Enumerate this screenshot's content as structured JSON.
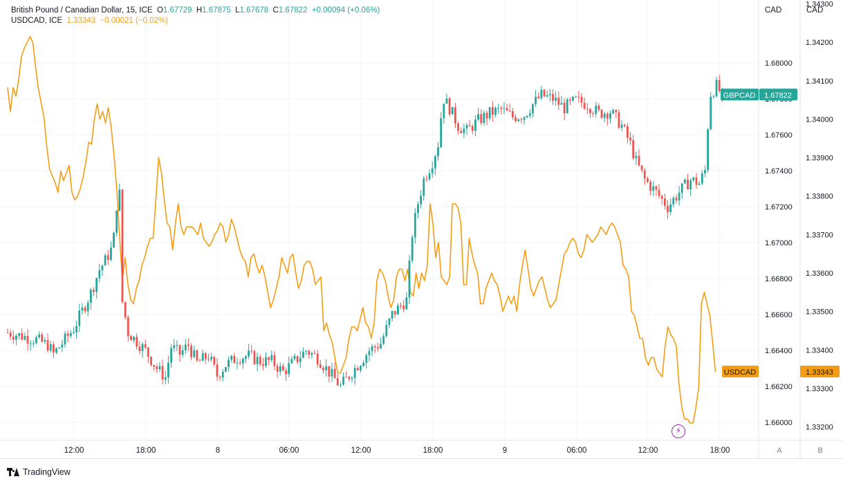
{
  "legend": {
    "main": {
      "name": "British Pound / Canadian Dollar, 15, ICE",
      "o_key": "O",
      "o": "1.67729",
      "h_key": "H",
      "h": "1.67875",
      "l_key": "L",
      "l": "1.67678",
      "c_key": "C",
      "c": "1.67822",
      "change": "+0.00094 (+0.06%)"
    },
    "compare": {
      "name": "USDCAD, ICE",
      "value": "1.33343",
      "change": "−0.00021 (−0.02%)"
    }
  },
  "axes": {
    "left_unit": "CAD",
    "right_unit": "CAD",
    "left_scale_button": "A",
    "right_scale_button": "B"
  },
  "badges": {
    "gbpcad_name": "GBPCAD",
    "gbpcad_value": "1.67822",
    "usdcad_name": "USDCAD",
    "usdcad_value": "1.33343"
  },
  "brand": "TradingView",
  "colors": {
    "up": "#26a69a",
    "down": "#ef5350",
    "compare": "#f59d12",
    "grid": "#f0f3fa",
    "axis_text": "#131722"
  },
  "icons": {
    "event": "lightning-icon",
    "logo": "tradingview-logo-icon"
  },
  "chart_data": [
    {
      "type": "candlestick",
      "title": "British Pound / Canadian Dollar, 15, ICE",
      "series_name": "GBPCAD",
      "ylim": [
        1.659,
        1.6835
      ],
      "yticks": [
        "1.66000",
        "1.66200",
        "1.66400",
        "1.66600",
        "1.66800",
        "1.67000",
        "1.67200",
        "1.67400",
        "1.67600",
        "1.67800",
        "1.68000"
      ],
      "xticks": [
        "12:00",
        "18:00",
        "8",
        "06:00",
        "12:00",
        "18:00",
        "9",
        "06:00",
        "12:00",
        "18:00"
      ],
      "grid": true,
      "close_path": [
        [
          0,
          1.665
        ],
        [
          5,
          1.6648
        ],
        [
          10,
          1.6646
        ],
        [
          14,
          1.6643
        ],
        [
          16,
          1.6638
        ],
        [
          20,
          1.6646
        ],
        [
          23,
          1.6652
        ],
        [
          26,
          1.6662
        ],
        [
          29,
          1.6672
        ],
        [
          32,
          1.6685
        ],
        [
          34,
          1.669
        ],
        [
          36,
          1.6696
        ],
        [
          37,
          1.6703
        ],
        [
          38,
          1.6721
        ],
        [
          39,
          1.6727
        ],
        [
          40,
          1.6667
        ],
        [
          42,
          1.665
        ],
        [
          45,
          1.6645
        ],
        [
          48,
          1.664
        ],
        [
          52,
          1.663
        ],
        [
          55,
          1.6625
        ],
        [
          57,
          1.6642
        ],
        [
          60,
          1.6638
        ],
        [
          63,
          1.6643
        ],
        [
          66,
          1.6633
        ],
        [
          70,
          1.6637
        ],
        [
          73,
          1.6626
        ],
        [
          76,
          1.6632
        ],
        [
          80,
          1.6636
        ],
        [
          84,
          1.6637
        ],
        [
          88,
          1.6634
        ],
        [
          92,
          1.6634
        ],
        [
          96,
          1.6628
        ],
        [
          100,
          1.6634
        ],
        [
          104,
          1.664
        ],
        [
          108,
          1.6636
        ],
        [
          112,
          1.6628
        ],
        [
          116,
          1.662
        ],
        [
          119,
          1.6626
        ],
        [
          122,
          1.6632
        ],
        [
          126,
          1.664
        ],
        [
          130,
          1.6644
        ],
        [
          134,
          1.666
        ],
        [
          137,
          1.6665
        ],
        [
          139,
          1.6668
        ],
        [
          141,
          1.6705
        ],
        [
          143,
          1.6722
        ],
        [
          145,
          1.6735
        ],
        [
          148,
          1.6745
        ],
        [
          150,
          1.6755
        ],
        [
          151,
          1.677
        ],
        [
          152,
          1.678
        ],
        [
          154,
          1.6775
        ],
        [
          157,
          1.6765
        ],
        [
          160,
          1.6762
        ],
        [
          164,
          1.6768
        ],
        [
          168,
          1.6772
        ],
        [
          172,
          1.6774
        ],
        [
          176,
          1.677
        ],
        [
          180,
          1.6771
        ],
        [
          183,
          1.6777
        ],
        [
          186,
          1.6782
        ],
        [
          190,
          1.678
        ],
        [
          194,
          1.6775
        ],
        [
          198,
          1.6779
        ],
        [
          202,
          1.6777
        ],
        [
          206,
          1.6772
        ],
        [
          210,
          1.6773
        ],
        [
          214,
          1.6765
        ],
        [
          217,
          1.6755
        ],
        [
          219,
          1.6745
        ],
        [
          222,
          1.6735
        ],
        [
          226,
          1.6728
        ],
        [
          230,
          1.672
        ],
        [
          234,
          1.6728
        ],
        [
          238,
          1.6735
        ],
        [
          241,
          1.6733
        ],
        [
          243,
          1.674
        ],
        [
          244,
          1.6765
        ],
        [
          245,
          1.6783
        ],
        [
          247,
          1.6787
        ],
        [
          249,
          1.6782
        ]
      ],
      "last_close": 1.67822
    },
    {
      "type": "line",
      "series_name": "USDCAD",
      "ylim": [
        1.33165,
        1.3431
      ],
      "yticks": [
        "1.33200",
        "1.33300",
        "1.33400",
        "1.33500",
        "1.33600",
        "1.33700",
        "1.33800",
        "1.33900",
        "1.34000",
        "1.34100",
        "1.34200",
        "1.34300"
      ],
      "points": [
        [
          0,
          1.34083
        ],
        [
          1,
          1.3402
        ],
        [
          2,
          1.34082
        ],
        [
          3,
          1.3406
        ],
        [
          4,
          1.34105
        ],
        [
          5,
          1.34165
        ],
        [
          6,
          1.34185
        ],
        [
          8,
          1.34215
        ],
        [
          9,
          1.342
        ],
        [
          10,
          1.34135
        ],
        [
          11,
          1.3408
        ],
        [
          13,
          1.34005
        ],
        [
          14,
          1.3393
        ],
        [
          15,
          1.3387
        ],
        [
          17,
          1.33835
        ],
        [
          18,
          1.3381
        ],
        [
          19,
          1.33865
        ],
        [
          20,
          1.3384
        ],
        [
          22,
          1.3388
        ],
        [
          23,
          1.3381
        ],
        [
          24,
          1.3379
        ],
        [
          25,
          1.338
        ],
        [
          26,
          1.3382
        ],
        [
          27,
          1.3385
        ],
        [
          28,
          1.3389
        ],
        [
          29,
          1.3394
        ],
        [
          30,
          1.33935
        ],
        [
          31,
          1.34
        ],
        [
          32,
          1.3404
        ],
        [
          33,
          1.34
        ],
        [
          34,
          1.3402
        ],
        [
          35,
          1.3399
        ],
        [
          36,
          1.3403
        ],
        [
          37,
          1.3398
        ],
        [
          38,
          1.3391
        ],
        [
          39,
          1.3382
        ],
        [
          40,
          1.337
        ],
        [
          41,
          1.3358
        ],
        [
          42,
          1.3364
        ],
        [
          43,
          1.3357
        ],
        [
          44,
          1.3353
        ],
        [
          45,
          1.3352
        ],
        [
          46,
          1.3356
        ],
        [
          47,
          1.3358
        ],
        [
          48,
          1.3362
        ],
        [
          49,
          1.3364
        ],
        [
          50,
          1.3367
        ],
        [
          51,
          1.3369
        ],
        [
          52,
          1.3369
        ],
        [
          53,
          1.3379
        ],
        [
          54,
          1.339
        ],
        [
          55,
          1.3386
        ],
        [
          56,
          1.3379
        ],
        [
          57,
          1.3373
        ],
        [
          58,
          1.3372
        ],
        [
          59,
          1.3366
        ],
        [
          60,
          1.3373
        ],
        [
          61,
          1.3378
        ],
        [
          62,
          1.3372
        ],
        [
          63,
          1.337
        ],
        [
          64,
          1.3372
        ],
        [
          66,
          1.3372
        ],
        [
          68,
          1.337
        ],
        [
          69,
          1.3373
        ],
        [
          70,
          1.3369
        ],
        [
          71,
          1.3368
        ],
        [
          72,
          1.3367
        ],
        [
          73,
          1.3368
        ],
        [
          74,
          1.337
        ],
        [
          75,
          1.3371
        ],
        [
          76,
          1.3373
        ],
        [
          77,
          1.3372
        ],
        [
          78,
          1.3368
        ],
        [
          79,
          1.337
        ],
        [
          80,
          1.3374
        ],
        [
          81,
          1.3372
        ],
        [
          82,
          1.3369
        ],
        [
          83,
          1.3366
        ],
        [
          84,
          1.3364
        ],
        [
          85,
          1.3363
        ],
        [
          86,
          1.3359
        ],
        [
          87,
          1.3364
        ],
        [
          88,
          1.3365
        ],
        [
          89,
          1.3362
        ],
        [
          90,
          1.336
        ],
        [
          91,
          1.3362
        ],
        [
          92,
          1.3359
        ],
        [
          93,
          1.3355
        ],
        [
          94,
          1.3351
        ],
        [
          95,
          1.3353
        ],
        [
          96,
          1.3356
        ],
        [
          97,
          1.3359
        ],
        [
          98,
          1.3364
        ],
        [
          99,
          1.3362
        ],
        [
          100,
          1.336
        ],
        [
          101,
          1.3364
        ],
        [
          102,
          1.3365
        ],
        [
          103,
          1.336
        ],
        [
          104,
          1.3356
        ],
        [
          105,
          1.3358
        ],
        [
          106,
          1.3362
        ],
        [
          107,
          1.3363
        ],
        [
          108,
          1.3363
        ],
        [
          109,
          1.3361
        ],
        [
          110,
          1.3357
        ],
        [
          111,
          1.3358
        ],
        [
          112,
          1.3359
        ],
        [
          113,
          1.3345
        ],
        [
          114,
          1.3347
        ],
        [
          115,
          1.3344
        ],
        [
          116,
          1.3342
        ],
        [
          117,
          1.3338
        ],
        [
          118,
          1.3334
        ],
        [
          119,
          1.3334
        ],
        [
          120,
          1.3336
        ],
        [
          121,
          1.3338
        ],
        [
          122,
          1.3343
        ],
        [
          123,
          1.3346
        ],
        [
          124,
          1.3346
        ],
        [
          125,
          1.3345
        ],
        [
          126,
          1.3348
        ],
        [
          127,
          1.3351
        ],
        [
          128,
          1.3347
        ],
        [
          129,
          1.3346
        ],
        [
          130,
          1.3343
        ],
        [
          131,
          1.3347
        ],
        [
          132,
          1.3358
        ],
        [
          133,
          1.3361
        ],
        [
          134,
          1.336
        ],
        [
          135,
          1.3358
        ],
        [
          136,
          1.3354
        ],
        [
          137,
          1.3351
        ],
        [
          138,
          1.3353
        ],
        [
          139,
          1.3359
        ],
        [
          140,
          1.3361
        ],
        [
          141,
          1.3361
        ],
        [
          142,
          1.3358
        ],
        [
          143,
          1.3361
        ],
        [
          144,
          1.3355
        ],
        [
          145,
          1.3354
        ],
        [
          146,
          1.336
        ],
        [
          147,
          1.3356
        ],
        [
          148,
          1.336
        ],
        [
          149,
          1.3358
        ],
        [
          150,
          1.3362
        ],
        [
          151,
          1.3378
        ],
        [
          152,
          1.3373
        ],
        [
          153,
          1.3364
        ],
        [
          154,
          1.3368
        ],
        [
          155,
          1.3359
        ],
        [
          156,
          1.3358
        ],
        [
          157,
          1.3357
        ],
        [
          158,
          1.3359
        ],
        [
          159,
          1.3378
        ],
        [
          160,
          1.3378
        ],
        [
          161,
          1.3377
        ],
        [
          162,
          1.3373
        ],
        [
          163,
          1.3357
        ],
        [
          164,
          1.3357
        ],
        [
          165,
          1.3369
        ],
        [
          166,
          1.3365
        ],
        [
          167,
          1.3362
        ],
        [
          168,
          1.336
        ],
        [
          169,
          1.3352
        ],
        [
          170,
          1.3352
        ],
        [
          171,
          1.3356
        ],
        [
          172,
          1.3358
        ],
        [
          173,
          1.336
        ],
        [
          174,
          1.3358
        ],
        [
          175,
          1.3357
        ],
        [
          176,
          1.3354
        ],
        [
          177,
          1.335
        ],
        [
          178,
          1.3352
        ],
        [
          179,
          1.3354
        ],
        [
          180,
          1.3352
        ],
        [
          181,
          1.3354
        ],
        [
          182,
          1.335
        ],
        [
          183,
          1.3357
        ],
        [
          184,
          1.3362
        ],
        [
          185,
          1.3366
        ],
        [
          186,
          1.3361
        ],
        [
          187,
          1.3356
        ],
        [
          188,
          1.3354
        ],
        [
          189,
          1.3356
        ],
        [
          190,
          1.3358
        ],
        [
          191,
          1.3359
        ],
        [
          192,
          1.3356
        ],
        [
          193,
          1.3353
        ],
        [
          194,
          1.3351
        ],
        [
          195,
          1.3352
        ],
        [
          196,
          1.3353
        ],
        [
          197,
          1.3357
        ],
        [
          198,
          1.3361
        ],
        [
          199,
          1.3365
        ],
        [
          200,
          1.3366
        ],
        [
          201,
          1.3368
        ],
        [
          202,
          1.3369
        ],
        [
          203,
          1.3368
        ],
        [
          204,
          1.3365
        ],
        [
          205,
          1.3364
        ],
        [
          206,
          1.3366
        ],
        [
          207,
          1.337
        ],
        [
          208,
          1.3369
        ],
        [
          209,
          1.3368
        ],
        [
          210,
          1.3369
        ],
        [
          211,
          1.337
        ],
        [
          212,
          1.3372
        ],
        [
          213,
          1.3371
        ],
        [
          214,
          1.337
        ],
        [
          215,
          1.3372
        ],
        [
          216,
          1.3373
        ],
        [
          217,
          1.3372
        ],
        [
          218,
          1.337
        ],
        [
          219,
          1.3368
        ],
        [
          220,
          1.3362
        ],
        [
          221,
          1.3361
        ],
        [
          222,
          1.3359
        ],
        [
          223,
          1.335
        ],
        [
          224,
          1.3349
        ],
        [
          225,
          1.3346
        ],
        [
          226,
          1.3343
        ],
        [
          227,
          1.3343
        ],
        [
          228,
          1.3338
        ],
        [
          229,
          1.3336
        ],
        [
          230,
          1.3338
        ],
        [
          231,
          1.3338
        ],
        [
          232,
          1.3335
        ],
        [
          233,
          1.3334
        ],
        [
          234,
          1.3333
        ],
        [
          235,
          1.3341
        ],
        [
          236,
          1.3346
        ],
        [
          237,
          1.3344
        ],
        [
          238,
          1.3343
        ],
        [
          239,
          1.3341
        ],
        [
          240,
          1.3331
        ],
        [
          241,
          1.3325
        ],
        [
          242,
          1.3322
        ],
        [
          243,
          1.3322
        ],
        [
          244,
          1.3321
        ],
        [
          245,
          1.3321
        ],
        [
          246,
          1.3325
        ],
        [
          247,
          1.333
        ],
        [
          248,
          1.3352
        ],
        [
          249,
          1.3355
        ],
        [
          250,
          1.3352
        ],
        [
          251,
          1.3349
        ],
        [
          252,
          1.3342
        ],
        [
          253,
          1.33343
        ]
      ],
      "last_value": 1.33343
    }
  ]
}
